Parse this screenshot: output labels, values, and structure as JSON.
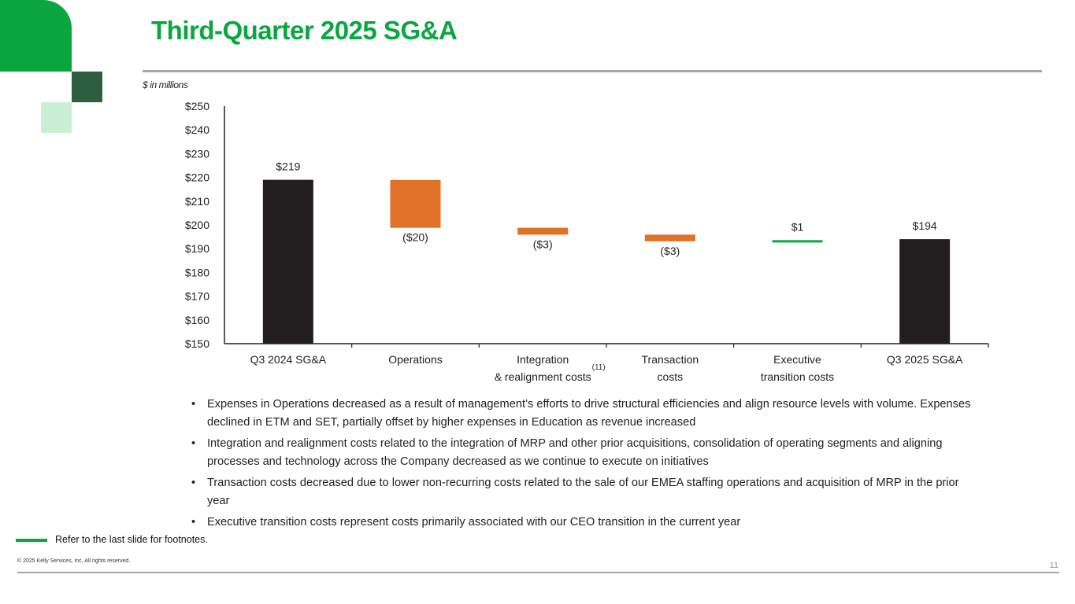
{
  "slide": {
    "title": "Third-Quarter 2025 SG&A",
    "units_note": "$ in millions",
    "footnote_ref": "Refer to the last slide for footnotes.",
    "copyright": "© 2025 Kelly Services, Inc. All rights reserved.",
    "page_number": "11"
  },
  "colors": {
    "brand_green": "#0aa63f",
    "dark_green": "#2d5e3e",
    "light_green": "#c9efd5",
    "total_bar": "#231f20",
    "decrease_bar": "#e07127",
    "increase_bar": "#0aa63f"
  },
  "chart_data": {
    "type": "bar",
    "subtype": "waterfall",
    "title": "",
    "xlabel": "",
    "ylabel": "$ in millions",
    "ylim": [
      150,
      250
    ],
    "y_ticks": [
      "$150",
      "$160",
      "$170",
      "$180",
      "$190",
      "$200",
      "$210",
      "$220",
      "$230",
      "$240",
      "$250"
    ],
    "categories": [
      {
        "label": [
          "Q3 2024 SG&A"
        ],
        "kind": "total",
        "start": 0,
        "end": 219,
        "data_label": "$219",
        "label_pos": "above"
      },
      {
        "label": [
          "Operations"
        ],
        "kind": "decrease",
        "start": 218.9,
        "end": 198.8,
        "data_label": "($20)",
        "label_pos": "below"
      },
      {
        "label": [
          "Integration",
          "& realignment costs"
        ],
        "kind": "decrease",
        "start": 198.8,
        "end": 195.9,
        "data_label": "($3)",
        "label_pos": "below",
        "superscript": "(11)"
      },
      {
        "label": [
          "Transaction",
          "costs"
        ],
        "kind": "decrease",
        "start": 195.9,
        "end": 193.1,
        "data_label": "($3)",
        "label_pos": "below"
      },
      {
        "label": [
          "Executive",
          "transition costs"
        ],
        "kind": "increase",
        "start": 193.1,
        "end": 193.6,
        "data_label": "$1",
        "label_pos": "above"
      },
      {
        "label": [
          "Q3 2025 SG&A"
        ],
        "kind": "total",
        "start": 0,
        "end": 194,
        "data_label": "$194",
        "label_pos": "above"
      }
    ]
  },
  "bullets": [
    "Expenses in Operations decreased as a result of management’s efforts to drive structural efficiencies and align resource levels with volume.  Expenses declined in ETM and SET, partially offset by higher expenses in Education as revenue increased",
    "Integration and realignment costs related to the integration of MRP and other prior acquisitions, consolidation of operating segments and aligning processes and technology across the Company decreased as we continue to execute on initiatives",
    "Transaction costs decreased due to lower non-recurring costs related to the sale of our EMEA staffing operations and acquisition of MRP in the prior year",
    "Executive transition costs represent costs primarily associated with our CEO transition in the current year"
  ]
}
